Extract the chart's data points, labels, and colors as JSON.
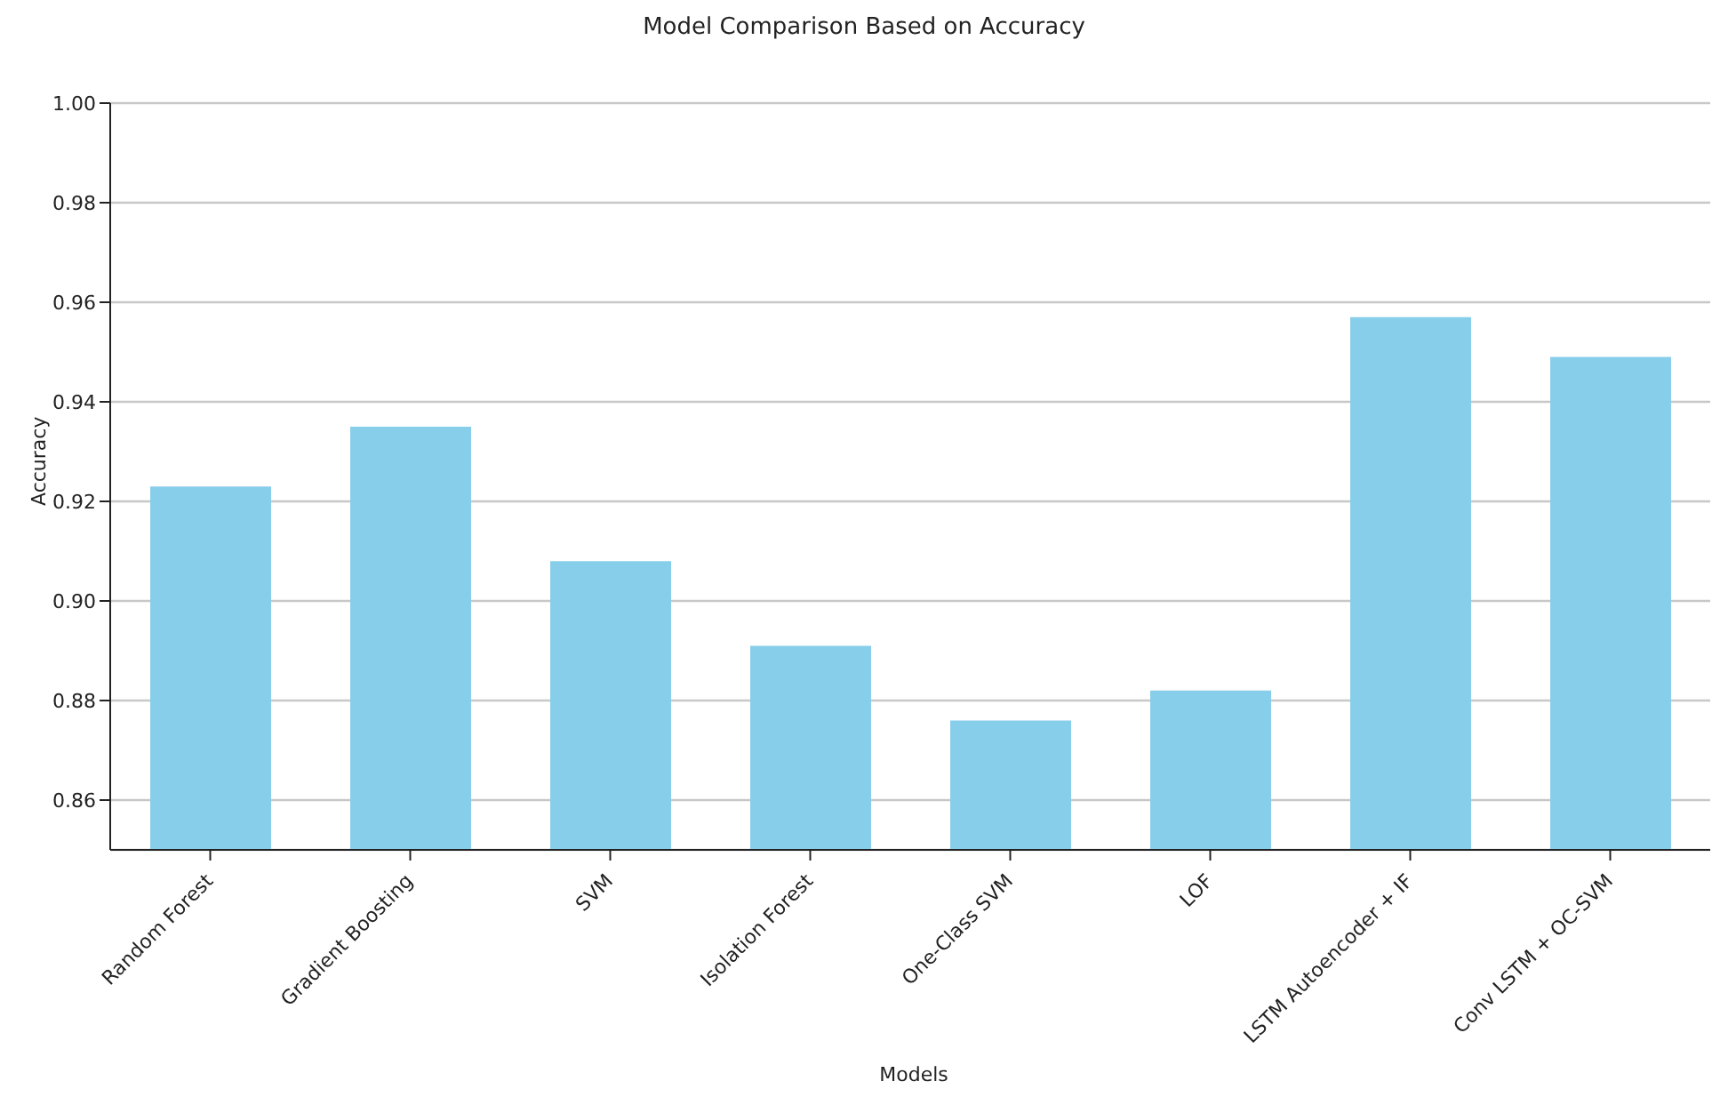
{
  "chart_data": {
    "type": "bar",
    "title": "Model Comparison Based on Accuracy",
    "xlabel": "Models",
    "ylabel": "Accuracy",
    "categories": [
      "Random Forest",
      "Gradient Boosting",
      "SVM",
      "Isolation Forest",
      "One-Class SVM",
      "LOF",
      "LSTM Autoencoder + IF",
      "Conv LSTM + OC-SVM"
    ],
    "values": [
      0.923,
      0.935,
      0.908,
      0.891,
      0.876,
      0.882,
      0.957,
      0.949
    ],
    "color": "#87ceeb",
    "ylim": [
      0.85,
      1.0
    ],
    "yticks": [
      0.86,
      0.88,
      {
        "value": 0.9,
        "label": "0.90"
      },
      0.92,
      0.94,
      0.96,
      0.98,
      {
        "value": 1.0,
        "label": "1.00"
      }
    ],
    "grid": "y"
  }
}
